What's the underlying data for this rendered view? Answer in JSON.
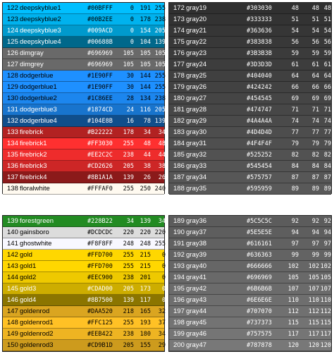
{
  "panels": [
    {
      "id": "p1",
      "rows": [
        [
          "122",
          "deepskyblue1",
          "#00BFFF",
          "0",
          "191",
          "255",
          "#00BFFF",
          "#000000"
        ],
        [
          "123",
          "deepskyblue2",
          "#00B2EE",
          "0",
          "178",
          "238",
          "#00B2EE",
          "#000000"
        ],
        [
          "124",
          "deepskyblue3",
          "#009ACD",
          "0",
          "154",
          "205",
          "#009ACD",
          "#ffffff"
        ],
        [
          "125",
          "deepskyblue4",
          "#00688B",
          "0",
          "104",
          "139",
          "#00688B",
          "#ffffff"
        ],
        [
          "126",
          "dimgray",
          "#696969",
          "105",
          "105",
          "105",
          "#696969",
          "#ffffff"
        ],
        [
          "127",
          "dimgrey",
          "#696969",
          "105",
          "105",
          "105",
          "#696969",
          "#ffffff"
        ],
        [
          "128",
          "dodgerblue",
          "#1E90FF",
          "30",
          "144",
          "255",
          "#1E90FF",
          "#000000"
        ],
        [
          "129",
          "dodgerblue1",
          "#1E90FF",
          "30",
          "144",
          "255",
          "#1E90FF",
          "#000000"
        ],
        [
          "130",
          "dodgerblue2",
          "#1C86EE",
          "28",
          "134",
          "238",
          "#1C86EE",
          "#000000"
        ],
        [
          "131",
          "dodgerblue3",
          "#1874CD",
          "24",
          "116",
          "205",
          "#1874CD",
          "#ffffff"
        ],
        [
          "132",
          "dodgerblue4",
          "#104E8B",
          "16",
          "78",
          "139",
          "#104E8B",
          "#ffffff"
        ],
        [
          "133",
          "firebrick",
          "#B22222",
          "178",
          "34",
          "34",
          "#B22222",
          "#ffffff"
        ],
        [
          "134",
          "firebrick1",
          "#FF3030",
          "255",
          "48",
          "48",
          "#FF3030",
          "#ffffff"
        ],
        [
          "135",
          "firebrick2",
          "#EE2C2C",
          "238",
          "44",
          "44",
          "#EE2C2C",
          "#ffffff"
        ],
        [
          "136",
          "firebrick3",
          "#CD2626",
          "205",
          "38",
          "38",
          "#CD2626",
          "#ffffff"
        ],
        [
          "137",
          "firebrick4",
          "#8B1A1A",
          "139",
          "26",
          "26",
          "#8B1A1A",
          "#ffffff"
        ],
        [
          "138",
          "floralwhite",
          "#FFFAF0",
          "255",
          "250",
          "240",
          "#FFFAF0",
          "#000000"
        ]
      ]
    },
    {
      "id": "p2",
      "rows": [
        [
          "172",
          "gray19",
          "#303030",
          "48",
          "48",
          "48",
          "#303030",
          "#ffffff"
        ],
        [
          "173",
          "gray20",
          "#333333",
          "51",
          "51",
          "51",
          "#333333",
          "#ffffff"
        ],
        [
          "174",
          "gray21",
          "#363636",
          "54",
          "54",
          "54",
          "#363636",
          "#ffffff"
        ],
        [
          "175",
          "gray22",
          "#383838",
          "56",
          "56",
          "56",
          "#383838",
          "#ffffff"
        ],
        [
          "176",
          "gray23",
          "#3B3B3B",
          "59",
          "59",
          "59",
          "#3B3B3B",
          "#ffffff"
        ],
        [
          "177",
          "gray24",
          "#3D3D3D",
          "61",
          "61",
          "61",
          "#3D3D3D",
          "#ffffff"
        ],
        [
          "178",
          "gray25",
          "#404040",
          "64",
          "64",
          "64",
          "#404040",
          "#ffffff"
        ],
        [
          "179",
          "gray26",
          "#424242",
          "66",
          "66",
          "66",
          "#424242",
          "#ffffff"
        ],
        [
          "180",
          "gray27",
          "#454545",
          "69",
          "69",
          "69",
          "#454545",
          "#ffffff"
        ],
        [
          "181",
          "gray28",
          "#474747",
          "71",
          "71",
          "71",
          "#474747",
          "#ffffff"
        ],
        [
          "182",
          "gray29",
          "#4A4A4A",
          "74",
          "74",
          "74",
          "#4A4A4A",
          "#ffffff"
        ],
        [
          "183",
          "gray30",
          "#4D4D4D",
          "77",
          "77",
          "77",
          "#4D4D4D",
          "#ffffff"
        ],
        [
          "184",
          "gray31",
          "#4F4F4F",
          "79",
          "79",
          "79",
          "#4F4F4F",
          "#ffffff"
        ],
        [
          "185",
          "gray32",
          "#525252",
          "82",
          "82",
          "82",
          "#525252",
          "#ffffff"
        ],
        [
          "186",
          "gray33",
          "#545454",
          "84",
          "84",
          "84",
          "#545454",
          "#ffffff"
        ],
        [
          "187",
          "gray34",
          "#575757",
          "87",
          "87",
          "87",
          "#575757",
          "#ffffff"
        ],
        [
          "188",
          "gray35",
          "#595959",
          "89",
          "89",
          "89",
          "#595959",
          "#ffffff"
        ]
      ]
    },
    {
      "id": "p3",
      "rows": [
        [
          "139",
          "forestgreen",
          "#228B22",
          "34",
          "139",
          "34",
          "#228B22",
          "#ffffff"
        ],
        [
          "140",
          "gainsboro",
          "#DCDCDC",
          "220",
          "220",
          "220",
          "#DCDCDC",
          "#000000"
        ],
        [
          "141",
          "ghostwhite",
          "#F8F8FF",
          "248",
          "248",
          "255",
          "#F8F8FF",
          "#000000"
        ],
        [
          "142",
          "gold",
          "#FFD700",
          "255",
          "215",
          "0",
          "#FFD700",
          "#000000"
        ],
        [
          "143",
          "gold1",
          "#FFD700",
          "255",
          "215",
          "0",
          "#FFD700",
          "#000000"
        ],
        [
          "144",
          "gold2",
          "#EEC900",
          "238",
          "201",
          "0",
          "#EEC900",
          "#000000"
        ],
        [
          "145",
          "gold3",
          "#CDAD00",
          "205",
          "173",
          "0",
          "#CDAD00",
          "#ffffff"
        ],
        [
          "146",
          "gold4",
          "#8B7500",
          "139",
          "117",
          "0",
          "#8B7500",
          "#ffffff"
        ],
        [
          "147",
          "goldenrod",
          "#DAA520",
          "218",
          "165",
          "32",
          "#DAA520",
          "#000000"
        ],
        [
          "148",
          "goldenrod1",
          "#FFC125",
          "255",
          "193",
          "37",
          "#FFC125",
          "#000000"
        ],
        [
          "149",
          "goldenrod2",
          "#EEB422",
          "238",
          "180",
          "34",
          "#EEB422",
          "#000000"
        ],
        [
          "150",
          "goldenrod3",
          "#CD9B1D",
          "205",
          "155",
          "29",
          "#CD9B1D",
          "#000000"
        ]
      ]
    },
    {
      "id": "p4",
      "rows": [
        [
          "189",
          "gray36",
          "#5C5C5C",
          "92",
          "92",
          "92",
          "#5C5C5C",
          "#ffffff"
        ],
        [
          "190",
          "gray37",
          "#5E5E5E",
          "94",
          "94",
          "94",
          "#5E5E5E",
          "#ffffff"
        ],
        [
          "191",
          "gray38",
          "#616161",
          "97",
          "97",
          "97",
          "#616161",
          "#ffffff"
        ],
        [
          "192",
          "gray39",
          "#636363",
          "99",
          "99",
          "99",
          "#636363",
          "#ffffff"
        ],
        [
          "193",
          "gray40",
          "#666666",
          "102",
          "102",
          "102",
          "#666666",
          "#ffffff"
        ],
        [
          "194",
          "gray41",
          "#696969",
          "105",
          "105",
          "105",
          "#696969",
          "#ffffff"
        ],
        [
          "195",
          "gray42",
          "#6B6B6B",
          "107",
          "107",
          "107",
          "#6B6B6B",
          "#ffffff"
        ],
        [
          "196",
          "gray43",
          "#6E6E6E",
          "110",
          "110",
          "110",
          "#6E6E6E",
          "#ffffff"
        ],
        [
          "197",
          "gray44",
          "#707070",
          "112",
          "112",
          "112",
          "#707070",
          "#ffffff"
        ],
        [
          "198",
          "gray45",
          "#737373",
          "115",
          "115",
          "115",
          "#737373",
          "#ffffff"
        ],
        [
          "199",
          "gray46",
          "#757575",
          "117",
          "117",
          "117",
          "#757575",
          "#ffffff"
        ],
        [
          "200",
          "gray47",
          "#787878",
          "120",
          "120",
          "120",
          "#787878",
          "#ffffff"
        ]
      ]
    }
  ]
}
